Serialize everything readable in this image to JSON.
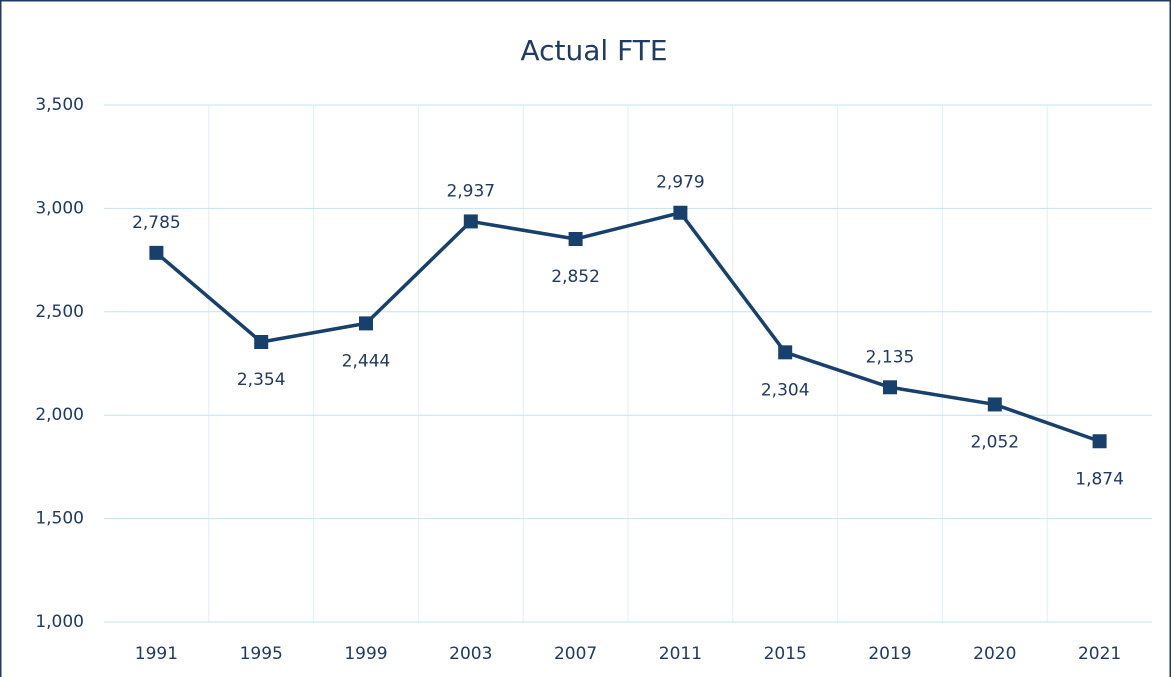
{
  "chart_data": {
    "type": "line",
    "title": "Actual FTE",
    "categories": [
      "1991",
      "1995",
      "1999",
      "2003",
      "2007",
      "2011",
      "2015",
      "2019",
      "2020",
      "2021"
    ],
    "series": [
      {
        "name": "Actual FTE",
        "color": "#17406d",
        "values": [
          2785,
          2354,
          2444,
          2937,
          2852,
          2979,
          2304,
          2135,
          2052,
          1874
        ],
        "value_labels": [
          "2,785",
          "2,354",
          "2,444",
          "2,937",
          "2,852",
          "2,979",
          "2,304",
          "2,135",
          "2,052",
          "1,874"
        ],
        "label_positions": [
          "above",
          "below",
          "below",
          "above",
          "below",
          "above",
          "below",
          "above",
          "below",
          "below"
        ]
      }
    ],
    "ylim": [
      1000,
      3500
    ],
    "yticks": [
      {
        "value": 1000,
        "label": "1,000"
      },
      {
        "value": 1500,
        "label": "1,500"
      },
      {
        "value": 2000,
        "label": "2,000"
      },
      {
        "value": 2500,
        "label": "2,500"
      },
      {
        "value": 3000,
        "label": "3,000"
      },
      {
        "value": 3500,
        "label": "3,500"
      }
    ],
    "grid": true
  }
}
